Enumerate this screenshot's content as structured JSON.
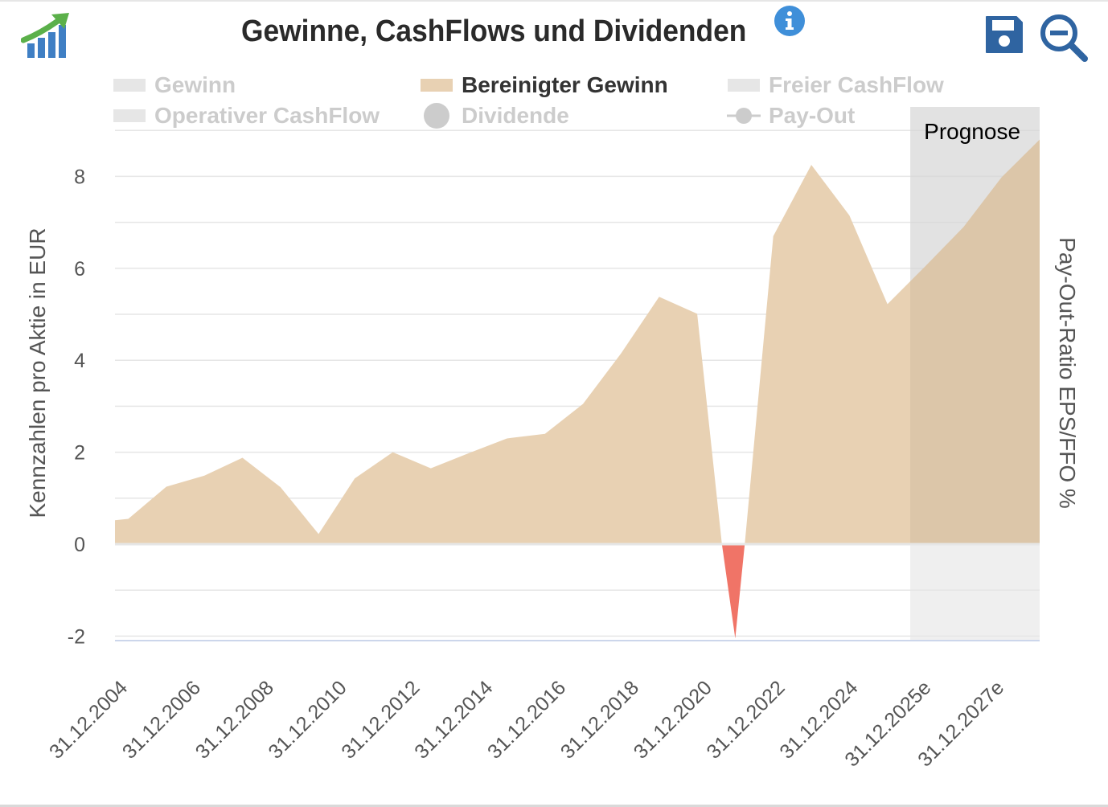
{
  "header": {
    "title": "Gewinne, CashFlows und Dividenden",
    "logo_icon": "chart-growth-logo-icon",
    "info_icon": "info-icon",
    "save_icon": "save-floppy-icon",
    "zoom_icon": "zoom-out-icon"
  },
  "legend": [
    {
      "label": "Gewinn",
      "symbol": "rect",
      "color": "#e6e6e6",
      "active": false
    },
    {
      "label": "Bereinigter Gewinn",
      "symbol": "rect",
      "color": "#e8d1b3",
      "active": true
    },
    {
      "label": "Freier CashFlow",
      "symbol": "rect",
      "color": "#e6e6e6",
      "active": false
    },
    {
      "label": "Operativer CashFlow",
      "symbol": "rect",
      "color": "#e6e6e6",
      "active": false
    },
    {
      "label": "Dividende",
      "symbol": "circle",
      "color": "#cccccc",
      "active": false
    },
    {
      "label": "Pay-Out",
      "symbol": "line-marker",
      "color": "#cccccc",
      "active": false
    }
  ],
  "chart_data": {
    "type": "area",
    "title": "Gewinne, CashFlows und Dividenden",
    "ylabel": "Kennzahlen pro Aktie in EUR",
    "ylabel_right": "Pay-Out-Ratio EPS/FFO %",
    "ylim": [
      -2.1,
      9.6
    ],
    "yticks": [
      -2,
      0,
      2,
      4,
      6,
      8
    ],
    "xticks": [
      "31.12.2004",
      "31.12.2006",
      "31.12.2008",
      "31.12.2010",
      "31.12.2012",
      "31.12.2014",
      "31.12.2016",
      "31.12.2018",
      "31.12.2020",
      "31.12.2022",
      "31.12.2024",
      "31.12.2025e",
      "31.12.2027e"
    ],
    "forecast_band_label": "Prognose",
    "forecast_band_start": 2024.9,
    "positive_color": "#e8d1b3",
    "negative_color": "#f07467",
    "grid": true,
    "legend_position": "top",
    "series": [
      {
        "name": "Bereinigter Gewinn",
        "x": [
          2004.0,
          2004.35,
          2005.35,
          2006.35,
          2007.35,
          2008.35,
          2009.35,
          2010.3,
          2011.3,
          2012.3,
          2013.3,
          2014.3,
          2015.3,
          2016.3,
          2017.3,
          2018.3,
          2019.3,
          2019.95,
          2020.3,
          2020.55,
          2021.3,
          2022.3,
          2023.3,
          2024.3,
          2025.3,
          2026.3,
          2027.3,
          2028.3
        ],
        "y": [
          0.52,
          0.55,
          1.25,
          1.49,
          1.88,
          1.24,
          0.22,
          1.43,
          2.0,
          1.65,
          1.98,
          2.3,
          2.4,
          3.05,
          4.15,
          5.38,
          5.01,
          0.0,
          -2.05,
          0.0,
          6.7,
          8.25,
          7.15,
          5.22,
          6.05,
          6.9,
          7.98,
          8.8
        ]
      }
    ]
  }
}
